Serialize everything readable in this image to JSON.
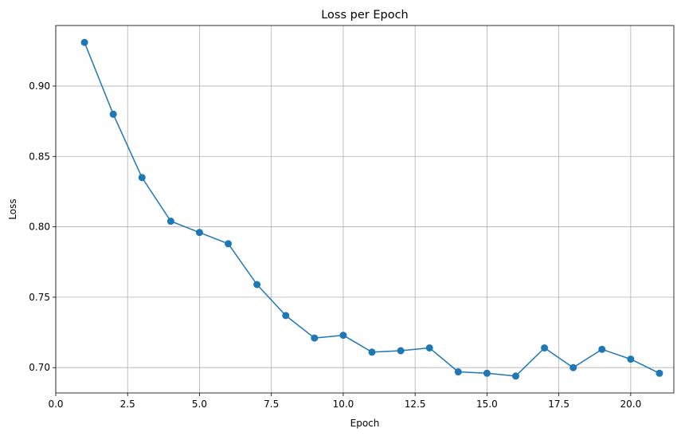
{
  "chart_data": {
    "type": "line",
    "title": "Loss per Epoch",
    "xlabel": "Epoch",
    "ylabel": "Loss",
    "xlim": [
      0,
      21.5
    ],
    "ylim": [
      0.682,
      0.943
    ],
    "xticks": [
      0.0,
      2.5,
      5.0,
      7.5,
      10.0,
      12.5,
      15.0,
      17.5,
      20.0
    ],
    "xtick_labels": [
      "0.0",
      "2.5",
      "5.0",
      "7.5",
      "10.0",
      "12.5",
      "15.0",
      "17.5",
      "20.0"
    ],
    "yticks": [
      0.7,
      0.75,
      0.8,
      0.85,
      0.9
    ],
    "ytick_labels": [
      "0.70",
      "0.75",
      "0.80",
      "0.85",
      "0.90"
    ],
    "grid": true,
    "markers": true,
    "colors": {
      "series": "#1f77b4",
      "grid": "#b0b0b0",
      "axis": "#000000"
    },
    "x": [
      1,
      2,
      3,
      4,
      5,
      6,
      7,
      8,
      9,
      10,
      11,
      12,
      13,
      14,
      15,
      16,
      17,
      18,
      19,
      20,
      21
    ],
    "series": [
      {
        "values": [
          0.931,
          0.88,
          0.835,
          0.804,
          0.796,
          0.788,
          0.759,
          0.737,
          0.721,
          0.723,
          0.711,
          0.712,
          0.714,
          0.697,
          0.696,
          0.694,
          0.714,
          0.7,
          0.713,
          0.706,
          0.696
        ]
      }
    ]
  }
}
